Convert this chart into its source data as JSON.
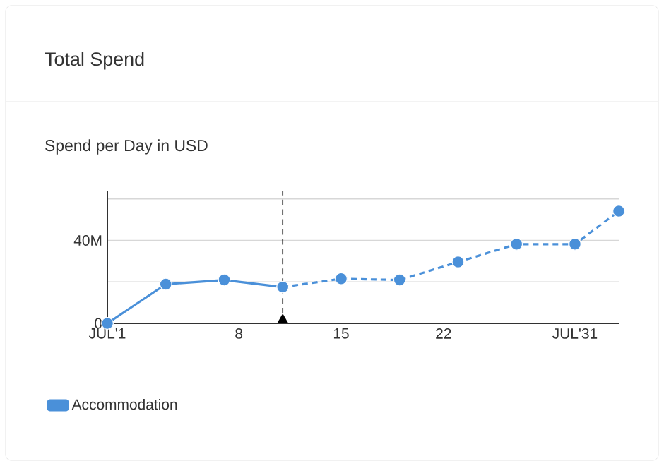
{
  "chart_data": {
    "type": "line",
    "title": "Total Spend",
    "subtitle": "Spend per Day in USD",
    "series": [
      {
        "name": "Accommodation",
        "color": "#4a90d9",
        "line_style": "solid",
        "x": [
          -1,
          3,
          7,
          11
        ],
        "values": [
          0,
          18.9,
          20.9,
          17.5
        ]
      },
      {
        "color": "#4a90d9",
        "line_style": "dashed",
        "x": [
          11,
          15,
          19,
          23,
          27,
          31,
          34
        ],
        "values": [
          17.5,
          21.5,
          20.9,
          29.6,
          38.2,
          38.2,
          54.1
        ]
      }
    ],
    "xlim": [
      -1,
      34
    ],
    "xticks": [
      {
        "value": -1,
        "label": "JUL'1"
      },
      8,
      15,
      22,
      {
        "value": 31,
        "label": "JUL'31"
      }
    ],
    "ylim": [
      0,
      64
    ],
    "yticks": [
      0,
      {
        "value": 20,
        "label": null
      },
      {
        "value": 40,
        "label": "40M"
      },
      {
        "value": 60,
        "label": null
      }
    ],
    "grid": "y",
    "legend": "bottom left",
    "marker": "circle",
    "ref_lines": [
      {
        "axis": "x",
        "value": 11,
        "line_style": "dashed",
        "color": "#000000"
      }
    ]
  }
}
